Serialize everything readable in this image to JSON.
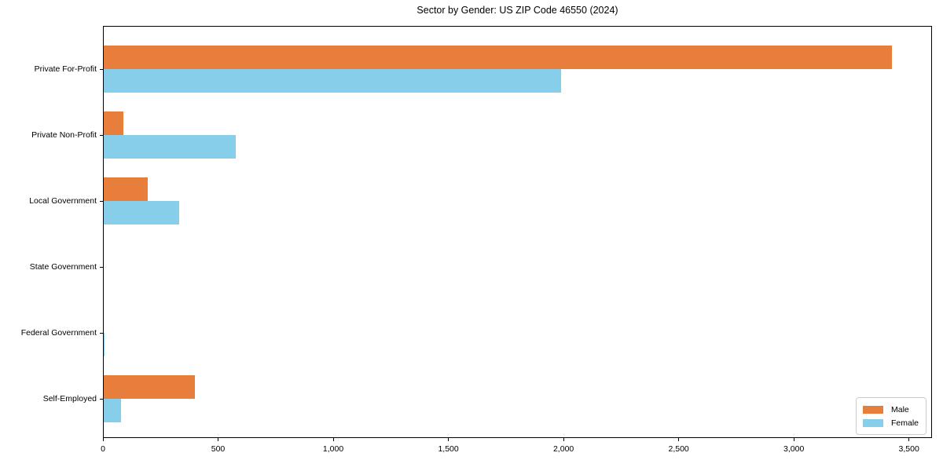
{
  "chart_data": {
    "type": "bar",
    "orientation": "horizontal",
    "title": "Sector by Gender: US ZIP Code 46550 (2024)",
    "categories": [
      "Private For-Profit",
      "Private Non-Profit",
      "Local Government",
      "State Government",
      "Federal Government",
      "Self-Employed"
    ],
    "series": [
      {
        "name": "Male",
        "color": "#e87e3c",
        "values": [
          3425,
          90,
          195,
          0,
          0,
          400
        ]
      },
      {
        "name": "Female",
        "color": "#87ceeb",
        "values": [
          1990,
          575,
          330,
          5,
          8,
          78
        ]
      }
    ],
    "xlabel": "",
    "ylabel": "",
    "xlim": [
      0,
      3600
    ],
    "xticks": [
      0,
      500,
      1000,
      1500,
      2000,
      2500,
      3000,
      3500
    ],
    "xtick_labels": [
      "0",
      "500",
      "1,000",
      "1,500",
      "2,000",
      "2,500",
      "3,000",
      "3,500"
    ],
    "grid": false,
    "legend_position": "lower right",
    "background_color": "#ffffff",
    "spine_color": "#000000"
  }
}
